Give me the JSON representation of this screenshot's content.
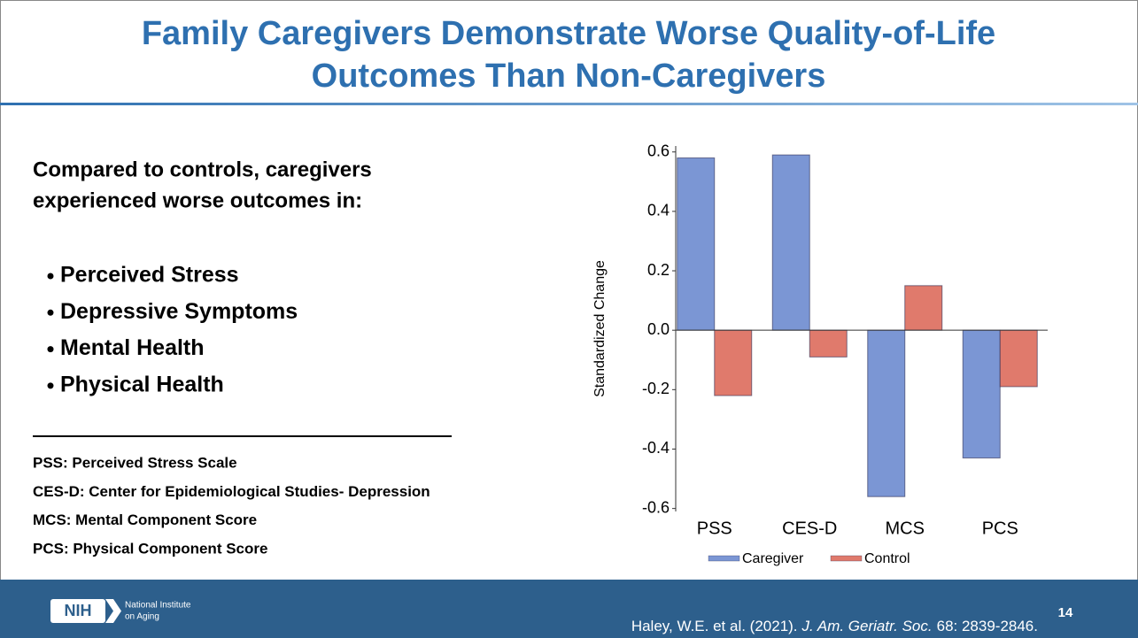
{
  "header": {
    "title_lines": [
      "Family Caregivers Demonstrate Worse Quality-of-Life",
      "Outcomes Than Non-Caregivers"
    ]
  },
  "body": {
    "intro_lines": [
      "Compared to controls, caregivers",
      "experienced worse outcomes in:"
    ],
    "bullets": [
      "Perceived Stress",
      "Depressive Symptoms",
      "Mental Health",
      "Physical Health"
    ],
    "abbreviations": [
      "PSS: Perceived Stress Scale",
      "CES-D: Center for Epidemiological Studies- Depression",
      "MCS: Mental Component Score",
      "PCS: Physical Component Score"
    ]
  },
  "chart_data": {
    "type": "bar",
    "ylabel": "Standardized Change",
    "categories": [
      "PSS",
      "CES-D",
      "MCS",
      "PCS"
    ],
    "series": [
      {
        "name": "Caregiver",
        "color": "#7b96d4",
        "values": [
          0.58,
          0.59,
          -0.56,
          -0.43
        ]
      },
      {
        "name": "Control",
        "color": "#e07a6c",
        "values": [
          -0.22,
          -0.09,
          0.15,
          -0.19
        ]
      }
    ],
    "ylim": [
      -0.61,
      0.62
    ],
    "yticks": [
      0.6,
      0.4,
      0.2,
      {
        "value": 0,
        "label": "0.0"
      },
      -0.2,
      -0.4,
      -0.6
    ],
    "legend": "bottom"
  },
  "footer": {
    "logo": "NIH",
    "institute_lines": [
      "National Institute",
      "on Aging"
    ],
    "citation": {
      "authors": "Haley, W.E. et al. (2021).",
      "journal": "J. Am. Geriatr. Soc.",
      "reference": "68: 2839-2846."
    },
    "page": "14"
  }
}
